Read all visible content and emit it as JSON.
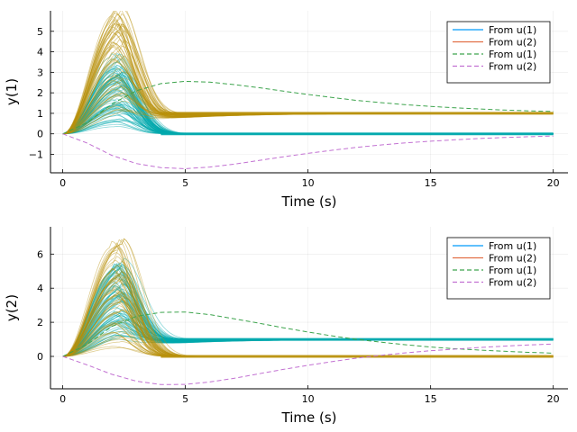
{
  "chart_data": [
    {
      "type": "line",
      "ylabel": "y(1)",
      "xlabel": "Time (s)",
      "xlim": [
        -0.5,
        20.6
      ],
      "ylim": [
        -1.9,
        6.0
      ],
      "xticks": [
        0,
        5,
        10,
        15,
        20
      ],
      "yticks": [
        -1,
        0,
        1,
        2,
        3,
        4,
        5
      ],
      "grid": true,
      "legend_position": "top-right",
      "legend": [
        {
          "label": "From u(1)",
          "color": "#009af9",
          "dash": "solid"
        },
        {
          "label": "From u(2)",
          "color": "#e26f46",
          "dash": "solid"
        },
        {
          "label": "From u(1)",
          "color": "#3da44d",
          "dash": "dashed"
        },
        {
          "label": "From u(2)",
          "color": "#c271d2",
          "dash": "dashed"
        }
      ],
      "ensemble": [
        {
          "name": "From u(1)",
          "color": "#00a9ad",
          "count": 80,
          "peak_range": [
            0.1,
            4.0
          ],
          "peak_time": 2.2,
          "final_value": 0.0
        },
        {
          "name": "From u(2)",
          "color": "#b8900a",
          "count": 60,
          "peak_range": [
            0.3,
            5.7
          ],
          "peak_time": 2.2,
          "final_value": 1.0
        }
      ],
      "series": [
        {
          "name": "From u(1)",
          "color": "#3da44d",
          "dash": "dashed",
          "x": [
            0,
            1,
            2,
            3,
            4,
            5,
            6,
            7,
            8,
            9,
            10,
            11,
            12,
            13,
            14,
            15,
            16,
            17,
            18,
            19,
            20
          ],
          "y": [
            0,
            0.55,
            1.45,
            2.1,
            2.45,
            2.56,
            2.52,
            2.4,
            2.25,
            2.08,
            1.92,
            1.77,
            1.63,
            1.52,
            1.42,
            1.34,
            1.27,
            1.21,
            1.16,
            1.12,
            1.09
          ]
        },
        {
          "name": "From u(2)",
          "color": "#c271d2",
          "dash": "dashed",
          "x": [
            0,
            1,
            2,
            3,
            4,
            5,
            6,
            7,
            8,
            9,
            10,
            11,
            12,
            13,
            14,
            15,
            16,
            17,
            18,
            19,
            20
          ],
          "y": [
            0,
            -0.45,
            -1.05,
            -1.45,
            -1.65,
            -1.7,
            -1.62,
            -1.48,
            -1.3,
            -1.12,
            -0.95,
            -0.8,
            -0.66,
            -0.54,
            -0.44,
            -0.36,
            -0.29,
            -0.23,
            -0.18,
            -0.14,
            -0.11
          ]
        }
      ]
    },
    {
      "type": "line",
      "ylabel": "y(2)",
      "xlabel": "Time (s)",
      "xlim": [
        -0.5,
        20.6
      ],
      "ylim": [
        -1.9,
        7.6
      ],
      "xticks": [
        0,
        5,
        10,
        15,
        20
      ],
      "yticks": [
        0,
        2,
        4,
        6
      ],
      "grid": true,
      "legend_position": "top-right",
      "legend": [
        {
          "label": "From u(1)",
          "color": "#009af9",
          "dash": "solid"
        },
        {
          "label": "From u(2)",
          "color": "#e26f46",
          "dash": "solid"
        },
        {
          "label": "From u(1)",
          "color": "#3da44d",
          "dash": "dashed"
        },
        {
          "label": "From u(2)",
          "color": "#c271d2",
          "dash": "dashed"
        }
      ],
      "ensemble": [
        {
          "name": "From u(1)",
          "color": "#00a9ad",
          "count": 80,
          "peak_range": [
            0.3,
            4.9
          ],
          "peak_time": 2.2,
          "final_value": 1.0
        },
        {
          "name": "From u(2)",
          "color": "#b8900a",
          "count": 60,
          "peak_range": [
            0.4,
            7.1
          ],
          "peak_time": 2.2,
          "final_value": 0.0
        }
      ],
      "series": [
        {
          "name": "From u(1)",
          "color": "#3da44d",
          "dash": "dashed",
          "x": [
            0,
            1,
            2,
            3,
            4,
            5,
            6,
            7,
            8,
            9,
            10,
            11,
            12,
            13,
            14,
            15,
            16,
            17,
            18,
            19,
            20
          ],
          "y": [
            0,
            0.7,
            1.75,
            2.35,
            2.58,
            2.6,
            2.45,
            2.2,
            1.95,
            1.68,
            1.43,
            1.2,
            1.0,
            0.83,
            0.68,
            0.55,
            0.45,
            0.37,
            0.3,
            0.24,
            0.19
          ]
        },
        {
          "name": "From u(2)",
          "color": "#c271d2",
          "dash": "dashed",
          "x": [
            0,
            1,
            2,
            3,
            4,
            5,
            6,
            7,
            8,
            9,
            10,
            11,
            12,
            13,
            14,
            15,
            16,
            17,
            18,
            19,
            20
          ],
          "y": [
            0,
            -0.5,
            -1.05,
            -1.45,
            -1.65,
            -1.64,
            -1.5,
            -1.28,
            -1.02,
            -0.76,
            -0.52,
            -0.3,
            -0.1,
            0.07,
            0.21,
            0.33,
            0.43,
            0.52,
            0.6,
            0.67,
            0.73
          ]
        }
      ]
    }
  ]
}
